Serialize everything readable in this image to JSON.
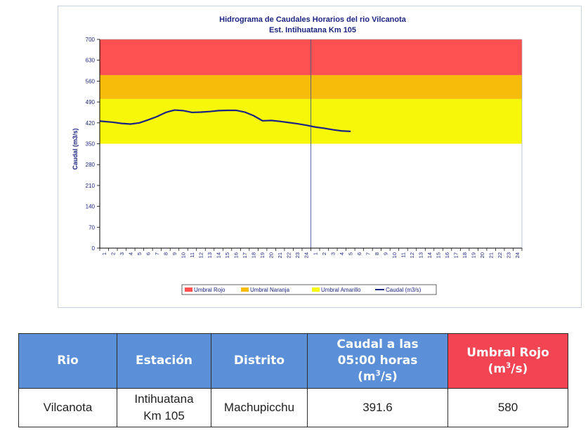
{
  "chart_data": {
    "type": "line",
    "title": "Hidrograma de Caudales Horarios del rio Vilcanota",
    "subtitle": "Est. Intihuatana Km 105",
    "ylabel": "Caudal  (m3/s)",
    "ylim": [
      0,
      700
    ],
    "yticks": [
      0,
      70,
      140,
      210,
      280,
      350,
      420,
      490,
      560,
      630,
      700
    ],
    "xticks": [
      "1",
      "2",
      "3",
      "4",
      "5",
      "6",
      "7",
      "8",
      "9",
      "10",
      "11",
      "12",
      "13",
      "14",
      "15",
      "16",
      "17",
      "18",
      "19",
      "20",
      "21",
      "22",
      "23",
      "24",
      "1",
      "2",
      "3",
      "4",
      "5",
      "6",
      "7",
      "8",
      "9",
      "10",
      "11",
      "12",
      "13",
      "14",
      "15",
      "16",
      "17",
      "18",
      "19",
      "20",
      "21",
      "22",
      "23",
      "24"
    ],
    "day_divider_after_index": 23,
    "bands": [
      {
        "name": "Umbral Rojo",
        "from": 580,
        "to": 700,
        "color": "#fd5151"
      },
      {
        "name": "Umbral Naranja",
        "from": 500,
        "to": 580,
        "color": "#f7bb09"
      },
      {
        "name": "Umbral Amarillo",
        "from": 350,
        "to": 500,
        "color": "#f7f70a"
      }
    ],
    "series": [
      {
        "name": "Caudal (m3/s)",
        "color": "#1c2583",
        "values": [
          426,
          422,
          418,
          416,
          420,
          430,
          441,
          455,
          463,
          461,
          455,
          456,
          458,
          461,
          462,
          462,
          456,
          444,
          427,
          428,
          425,
          421,
          417,
          412,
          406,
          402,
          397,
          393,
          391.6
        ]
      }
    ],
    "legend_position": "bottom"
  },
  "table": {
    "headers": {
      "rio": "Rio",
      "estacion": "Estación",
      "distrito": "Distrito",
      "caudal_line1": "Caudal a las",
      "caudal_line2": "05:00 horas",
      "caudal_unit_base": "(m",
      "caudal_unit_sup": "3",
      "caudal_unit_end": "/s)",
      "umbral_line1": "Umbral Rojo",
      "umbral_unit_base": "(m",
      "umbral_unit_sup": "3",
      "umbral_unit_end": "/s)"
    },
    "row": {
      "rio": "Vilcanota",
      "estacion_line1": "Intihuatana",
      "estacion_line2": "Km 105",
      "distrito": "Machupicchu",
      "caudal": "391.6",
      "umbral": "580"
    },
    "colors": {
      "header": "#5b8fd8",
      "header_rojo": "#f24452"
    }
  }
}
